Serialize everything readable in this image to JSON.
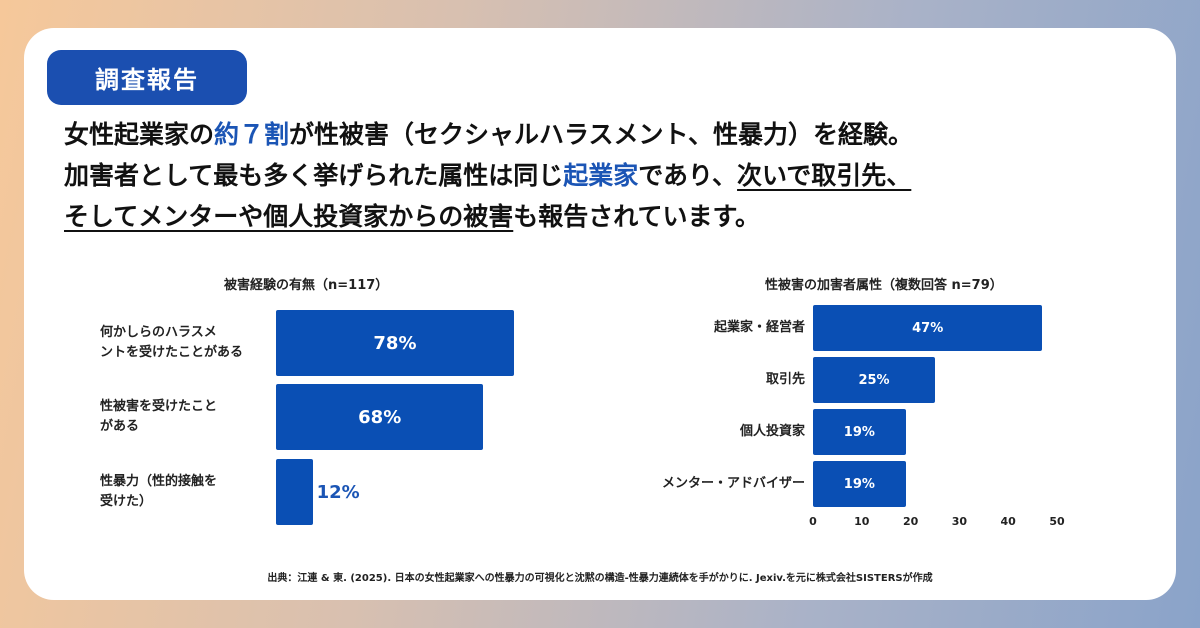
{
  "badge": "調査報告",
  "headline": {
    "l1a": "女性起業家の",
    "l1b": "約７割",
    "l1c": "が性被害（セクシャルハラスメント、性暴力）を経験。",
    "l2a": "加害者として最も多く挙げられた属性は同じ",
    "l2b": "起業家",
    "l2c": "であり、",
    "l2d": "次いで取引先、",
    "l3a": "そしてメンターや個人投資家からの被害",
    "l3b": "も報告されています。"
  },
  "colors": {
    "bar": "#0a4fb4",
    "accent": "#1b55b5",
    "badge": "#1b4fb0"
  },
  "chart_data": [
    {
      "type": "bar",
      "orientation": "horizontal",
      "title": "被害経験の有無（n=117）",
      "categories": [
        "何かしらのハラスメントを受けたことがある",
        "性被害を受けたことがある",
        "性暴力（性的接触を受けた）"
      ],
      "labels": [
        "何かしらのハラスメ\nントを受けたことがある",
        "性被害を受けたこと\nがある",
        "性暴力（性的接触を\n受けた）"
      ],
      "values": [
        78,
        68,
        12
      ],
      "data_labels": [
        "78%",
        "68%",
        "12%"
      ],
      "xlim": [
        0,
        100
      ],
      "axis": false
    },
    {
      "type": "bar",
      "orientation": "horizontal",
      "title": "性被害の加害者属性（複数回答 n=79）",
      "categories": [
        "起業家・経営者",
        "取引先",
        "個人投資家",
        "メンター・アドバイザー"
      ],
      "values": [
        47,
        25,
        19,
        19
      ],
      "data_labels": [
        "47%",
        "25%",
        "19%",
        "19%"
      ],
      "xlim": [
        0,
        50
      ],
      "ticks": [
        "0",
        "10",
        "20",
        "30",
        "40",
        "50"
      ]
    }
  ],
  "source": "出典：江連 & 東. (2025). 日本の女性起業家への性暴力の可視化と沈黙の構造-性暴力連続体を手がかりに. Jexiv.を元に株式会社SISTERSが作成"
}
